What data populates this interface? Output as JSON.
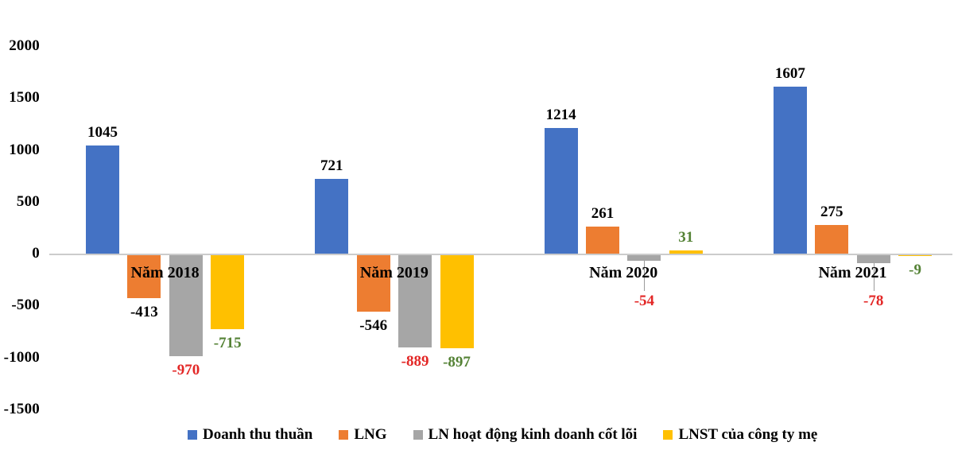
{
  "page": {
    "background": "#ffffff"
  },
  "chart_data": {
    "type": "bar",
    "title": "",
    "xlabel": "",
    "ylabel": "",
    "categories": [
      "Năm 2018",
      "Năm 2019",
      "Năm 2020",
      "Năm 2021"
    ],
    "series": [
      {
        "name": "Doanh thu thuần",
        "color": "#4472C4",
        "label_color": "#000000",
        "values": [
          1045,
          721,
          1214,
          1607
        ]
      },
      {
        "name": "LNG",
        "color": "#ED7D31",
        "label_color": "#000000",
        "values": [
          -413,
          -546,
          261,
          275
        ]
      },
      {
        "name": "LN hoạt động kinh doanh cốt lõi",
        "color": "#A6A6A6",
        "label_color": "#E32726",
        "values": [
          -970,
          -889,
          -54,
          -78
        ]
      },
      {
        "name": "LNST của công ty mẹ",
        "color": "#FFC000",
        "label_color": "#548235",
        "values": [
          -715,
          -897,
          31,
          -9
        ]
      }
    ],
    "y_axis": {
      "ticks": [
        2000,
        1500,
        1000,
        500,
        0,
        -500,
        -1000,
        -1500
      ],
      "min": -1500,
      "max": 2000
    },
    "grid": false,
    "legend_position": "bottom",
    "axis_line_color": "#cccccc"
  }
}
